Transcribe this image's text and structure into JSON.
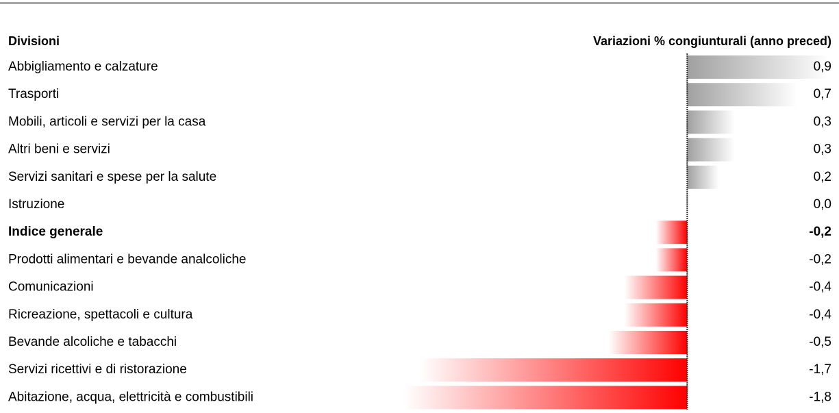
{
  "chart_data": {
    "type": "bar",
    "orientation": "horizontal",
    "category_header": "Divisioni",
    "value_header": "Variazioni % congiunturali (anno preced)",
    "categories": [
      "Abbigliamento e calzature",
      "Trasporti",
      "Mobili, articoli e servizi per la casa",
      "Altri beni e servizi",
      "Servizi sanitari e spese per la salute",
      "Istruzione",
      "Indice generale",
      "Prodotti alimentari e bevande analcoliche",
      "Comunicazioni",
      "Ricreazione, spettacoli e cultura",
      "Bevande alcoliche e tabacchi",
      "Servizi ricettivi e di ristorazione",
      "Abitazione, acqua, elettricità e combustibili"
    ],
    "values": [
      0.9,
      0.7,
      0.3,
      0.3,
      0.2,
      0.0,
      -0.2,
      -0.2,
      -0.4,
      -0.4,
      -0.5,
      -1.7,
      -1.8
    ],
    "value_labels": [
      "0,9",
      "0,7",
      "0,3",
      "0,3",
      "0,2",
      "0,0",
      "-0,2",
      "-0,2",
      "-0,4",
      "-0,4",
      "-0,5",
      "-1,7",
      "-1,8"
    ],
    "bold_index": 6,
    "xlim": [
      -1.8,
      0.9
    ],
    "colors": {
      "positive": "#a0a0a0",
      "negative": "#ff0000"
    }
  }
}
